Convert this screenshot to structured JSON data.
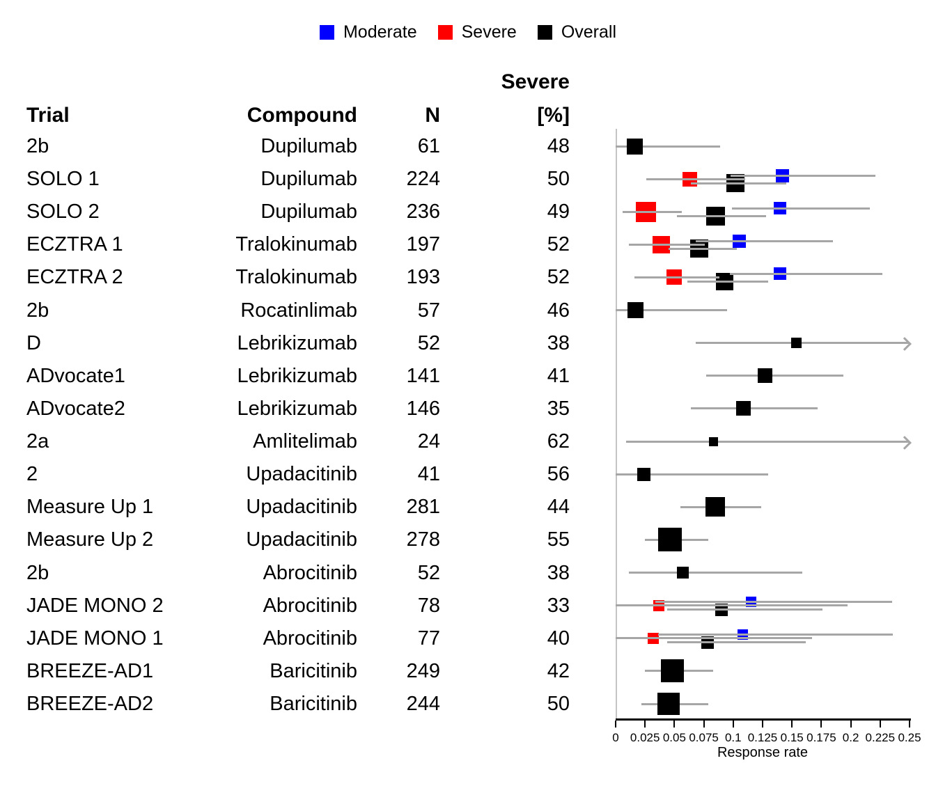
{
  "legend": {
    "items": [
      {
        "label": "Moderate",
        "color": "#0000ff"
      },
      {
        "label": "Severe",
        "color": "#ff0000"
      },
      {
        "label": "Overall",
        "color": "#000000"
      }
    ]
  },
  "table_header": {
    "trial": "Trial",
    "compound": "Compound",
    "n": "N",
    "severe_top": "Severe",
    "severe_bottom": "[%]"
  },
  "colors": {
    "moderate": "#0000ff",
    "severe": "#ff0000",
    "overall": "#000000",
    "ci_line": "#a6a6a6",
    "guide_line": "#c4c4c4",
    "axis": "#000000"
  },
  "chart_data": {
    "type": "scatter",
    "variant": "forest_plot",
    "xlabel": "Response rate",
    "xlim": [
      0,
      0.25
    ],
    "tick_labels": [
      "0",
      "0.025",
      "0.05",
      "0.075",
      "0.1",
      "0.125",
      "0.15",
      "0.175",
      "0.2",
      "0.225",
      "0.25"
    ],
    "tick_values": [
      0,
      0.025,
      0.05,
      0.075,
      0.1,
      0.125,
      0.15,
      0.175,
      0.2,
      0.225,
      0.25
    ],
    "grid": false,
    "legend_position": "top-center",
    "rows": [
      {
        "trial": "2b",
        "compound": "Dupilumab",
        "n": "61",
        "severe_pct": "48",
        "series": [
          {
            "group": "overall",
            "est": 0.016,
            "lo": 0.0,
            "hi": 0.089,
            "size": 23
          }
        ]
      },
      {
        "trial": "SOLO 1",
        "compound": "Dupilumab",
        "n": "224",
        "severe_pct": "50",
        "series": [
          {
            "group": "severe",
            "est": 0.063,
            "lo": 0.026,
            "hi": 0.11,
            "size": 21
          },
          {
            "group": "overall",
            "est": 0.102,
            "lo": 0.064,
            "hi": 0.145,
            "size": 26
          },
          {
            "group": "moderate",
            "est": 0.142,
            "lo": 0.098,
            "hi": 0.221,
            "size": 19
          }
        ]
      },
      {
        "trial": "SOLO 2",
        "compound": "Dupilumab",
        "n": "236",
        "severe_pct": "49",
        "series": [
          {
            "group": "severe",
            "est": 0.026,
            "lo": 0.006,
            "hi": 0.056,
            "size": 29
          },
          {
            "group": "overall",
            "est": 0.085,
            "lo": 0.052,
            "hi": 0.128,
            "size": 27
          },
          {
            "group": "moderate",
            "est": 0.14,
            "lo": 0.099,
            "hi": 0.216,
            "size": 18
          }
        ]
      },
      {
        "trial": "ECZTRA 1",
        "compound": "Tralokinumab",
        "n": "197",
        "severe_pct": "52",
        "series": [
          {
            "group": "severe",
            "est": 0.039,
            "lo": 0.011,
            "hi": 0.076,
            "size": 25
          },
          {
            "group": "overall",
            "est": 0.071,
            "lo": 0.045,
            "hi": 0.103,
            "size": 26
          },
          {
            "group": "moderate",
            "est": 0.105,
            "lo": 0.068,
            "hi": 0.185,
            "size": 19
          }
        ]
      },
      {
        "trial": "ECZTRA 2",
        "compound": "Tralokinumab",
        "n": "193",
        "severe_pct": "52",
        "series": [
          {
            "group": "severe",
            "est": 0.05,
            "lo": 0.016,
            "hi": 0.088,
            "size": 22
          },
          {
            "group": "overall",
            "est": 0.093,
            "lo": 0.061,
            "hi": 0.13,
            "size": 25
          },
          {
            "group": "moderate",
            "est": 0.14,
            "lo": 0.097,
            "hi": 0.227,
            "size": 18
          }
        ]
      },
      {
        "trial": "2b",
        "compound": "Rocatinlimab",
        "n": "57",
        "severe_pct": "46",
        "series": [
          {
            "group": "overall",
            "est": 0.017,
            "lo": 0.0,
            "hi": 0.095,
            "size": 23
          }
        ]
      },
      {
        "trial": "D",
        "compound": "Lebrikizumab",
        "n": "52",
        "severe_pct": "38",
        "series": [
          {
            "group": "overall",
            "est": 0.154,
            "lo": 0.068,
            "hi": 0.25,
            "size": 15,
            "arrow_right": true
          }
        ]
      },
      {
        "trial": "ADvocate1",
        "compound": "Lebrikizumab",
        "n": "141",
        "severe_pct": "41",
        "series": [
          {
            "group": "overall",
            "est": 0.127,
            "lo": 0.077,
            "hi": 0.194,
            "size": 21
          }
        ]
      },
      {
        "trial": "ADvocate2",
        "compound": "Lebrikizumab",
        "n": "146",
        "severe_pct": "35",
        "series": [
          {
            "group": "overall",
            "est": 0.109,
            "lo": 0.064,
            "hi": 0.172,
            "size": 21
          }
        ]
      },
      {
        "trial": "2a",
        "compound": "Amlitelimab",
        "n": "24",
        "severe_pct": "62",
        "series": [
          {
            "group": "overall",
            "est": 0.083,
            "lo": 0.009,
            "hi": 0.25,
            "size": 13,
            "arrow_right": true
          }
        ]
      },
      {
        "trial": "2",
        "compound": "Upadacitinib",
        "n": "41",
        "severe_pct": "56",
        "series": [
          {
            "group": "overall",
            "est": 0.024,
            "lo": 0.0,
            "hi": 0.13,
            "size": 19
          }
        ]
      },
      {
        "trial": "Measure Up 1",
        "compound": "Upadacitinib",
        "n": "281",
        "severe_pct": "44",
        "series": [
          {
            "group": "overall",
            "est": 0.085,
            "lo": 0.055,
            "hi": 0.124,
            "size": 28
          }
        ]
      },
      {
        "trial": "Measure Up 2",
        "compound": "Upadacitinib",
        "n": "278",
        "severe_pct": "55",
        "series": [
          {
            "group": "overall",
            "est": 0.046,
            "lo": 0.025,
            "hi": 0.079,
            "size": 34
          }
        ]
      },
      {
        "trial": "2b",
        "compound": "Abrocitinib",
        "n": "52",
        "severe_pct": "38",
        "series": [
          {
            "group": "overall",
            "est": 0.057,
            "lo": 0.011,
            "hi": 0.159,
            "size": 17
          }
        ]
      },
      {
        "trial": "JADE MONO 2",
        "compound": "Abrocitinib",
        "n": "78",
        "severe_pct": "33",
        "series": [
          {
            "group": "severe",
            "est": 0.037,
            "lo": 0.0,
            "hi": 0.197,
            "size": 16
          },
          {
            "group": "overall",
            "est": 0.09,
            "lo": 0.044,
            "hi": 0.176,
            "size": 18
          },
          {
            "group": "moderate",
            "est": 0.115,
            "lo": 0.034,
            "hi": 0.235,
            "size": 15
          }
        ]
      },
      {
        "trial": "JADE MONO 1",
        "compound": "Abrocitinib",
        "n": "77",
        "severe_pct": "40",
        "series": [
          {
            "group": "severe",
            "est": 0.032,
            "lo": 0.0,
            "hi": 0.167,
            "size": 16
          },
          {
            "group": "overall",
            "est": 0.078,
            "lo": 0.044,
            "hi": 0.162,
            "size": 18
          },
          {
            "group": "moderate",
            "est": 0.108,
            "lo": 0.036,
            "hi": 0.236,
            "size": 15
          }
        ]
      },
      {
        "trial": "BREEZE-AD1",
        "compound": "Baricitinib",
        "n": "249",
        "severe_pct": "42",
        "series": [
          {
            "group": "overall",
            "est": 0.048,
            "lo": 0.025,
            "hi": 0.083,
            "size": 33
          }
        ]
      },
      {
        "trial": "BREEZE-AD2",
        "compound": "Baricitinib",
        "n": "244",
        "severe_pct": "50",
        "series": [
          {
            "group": "overall",
            "est": 0.045,
            "lo": 0.022,
            "hi": 0.079,
            "size": 32
          }
        ]
      }
    ]
  }
}
